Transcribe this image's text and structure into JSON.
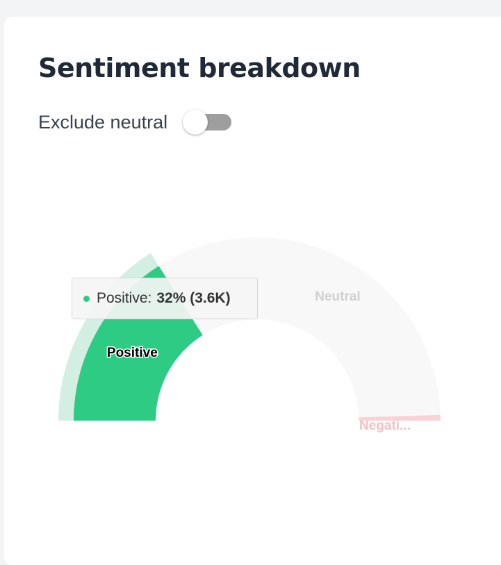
{
  "title": "Sentiment breakdown",
  "toggle": {
    "label": "Exclude neutral",
    "on": false
  },
  "tooltip": {
    "series": "Positive:",
    "value": "32% (3.6K)"
  },
  "colors": {
    "positive": "#2dcb84",
    "positive_hover": "#d3efe1",
    "neutral": "#f8f8f8",
    "negative": "#fad2d6"
  },
  "chart_data": {
    "type": "pie",
    "subtype": "semi-donut",
    "series": [
      {
        "name": "Positive",
        "label": "Positive",
        "percent": 32,
        "count": "3.6K",
        "color": "#2dcb84"
      },
      {
        "name": "Neutral",
        "label": "Neutral",
        "percent": 67,
        "color": "#f8f8f8"
      },
      {
        "name": "Negative",
        "label": "Negati...",
        "percent": 1,
        "color": "#fad2d6"
      }
    ],
    "highlighted": "Positive"
  }
}
